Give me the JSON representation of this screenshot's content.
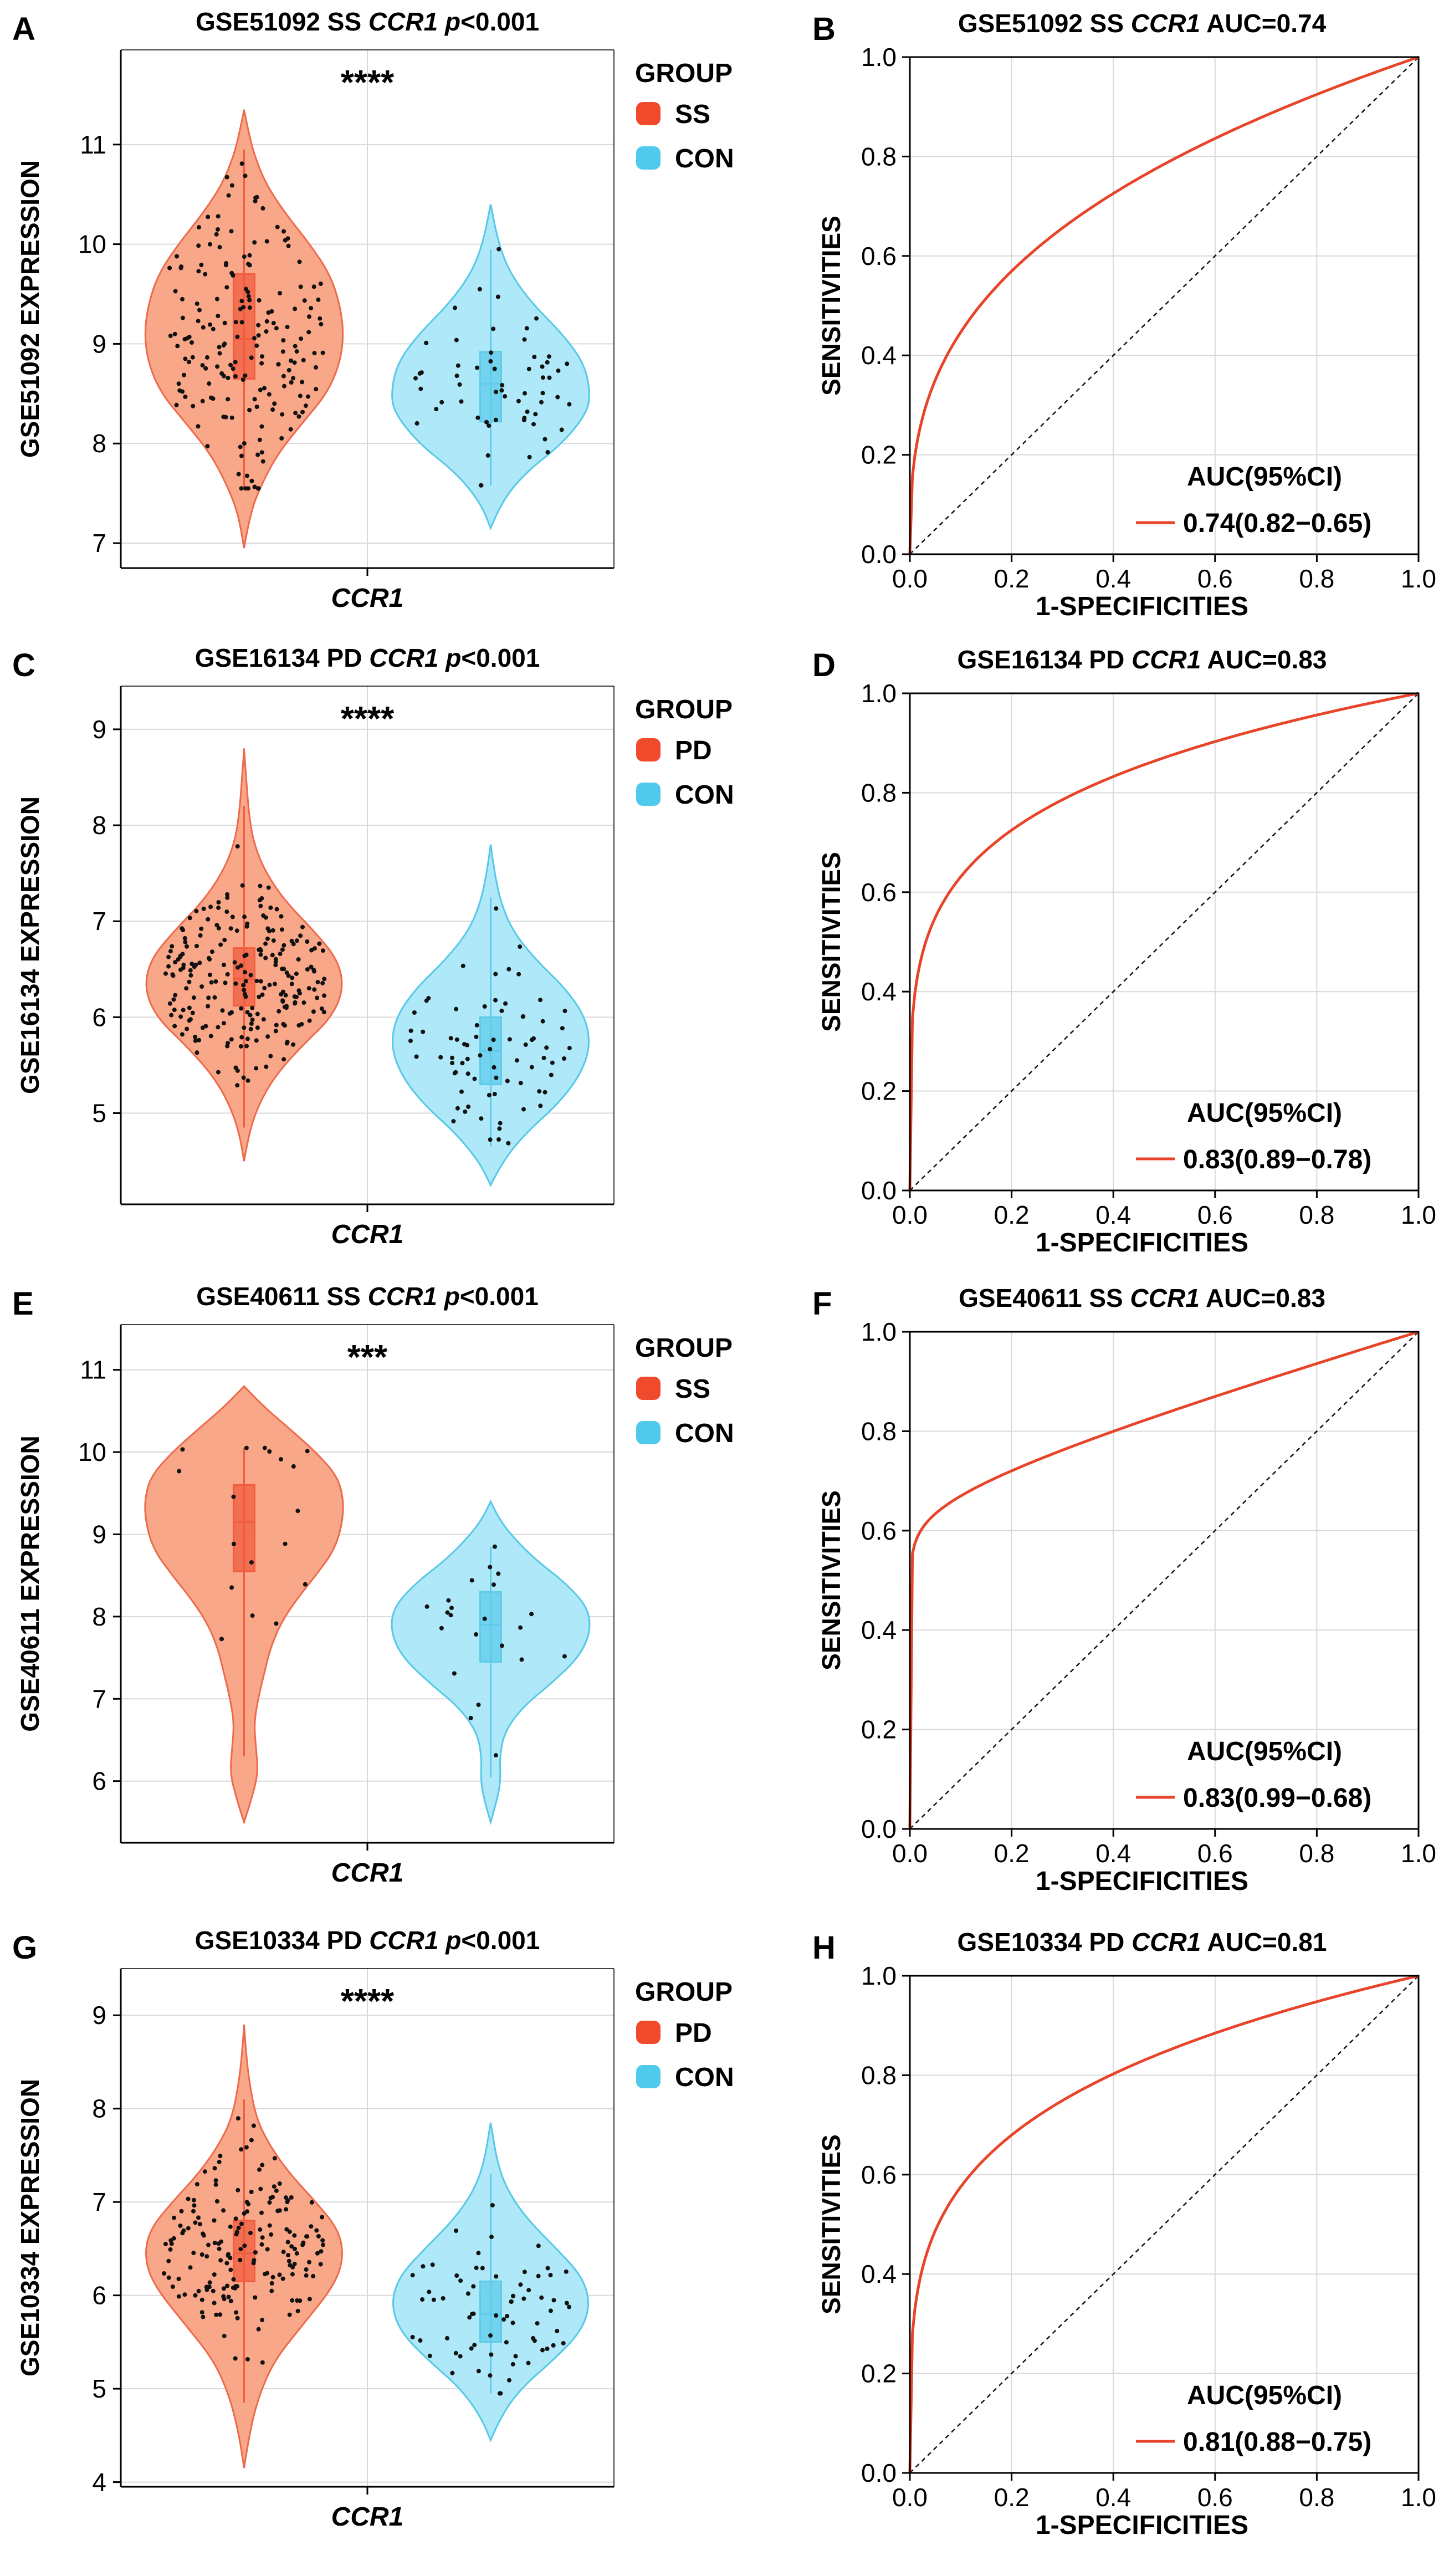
{
  "figure": {
    "colors": {
      "case_fill": "#F7A07E",
      "case_stroke": "#EC6A4B",
      "con_fill": "#A8E6F7",
      "con_stroke": "#55C8E8",
      "case_box": "#F25C3F",
      "con_box": "#5FCBEA",
      "legend_case": "#F04A2C",
      "legend_con": "#4FC9EC",
      "roc_line": "#E8442A",
      "grid": "#D9D9D9",
      "axis": "#000000",
      "point": "#111111"
    },
    "violin_common": {
      "xlabel": "CCR1",
      "legend_title": "GROUP",
      "control_label": "CON"
    },
    "roc_common": {
      "xlabel": "1-SPECIFICITIES",
      "ylabel": "SENSITIVITIES",
      "legend_title": "AUC(95%CI)"
    }
  },
  "panels": [
    {
      "violin": {
        "letter": "A",
        "dataset": "GSE51092",
        "disease": "SS",
        "gene": "CCR1",
        "pvalue": "p<0.001",
        "significance": "****",
        "ylabel": "GSE51092 EXPRESSION",
        "legend_case": "SS",
        "legend_control": "CON",
        "ylim": [
          6.75,
          11.95
        ],
        "yticks": [
          7,
          8,
          9,
          10,
          11
        ],
        "case": {
          "min": 6.95,
          "max": 11.35,
          "q1": 8.65,
          "median": 9.05,
          "q3": 9.7,
          "whisk_lo": 7.55,
          "whisk_hi": 10.95,
          "n": 190,
          "shape": [
            [
              6.95,
              0.0
            ],
            [
              7.3,
              0.06
            ],
            [
              7.6,
              0.18
            ],
            [
              7.9,
              0.34
            ],
            [
              8.2,
              0.58
            ],
            [
              8.5,
              0.83
            ],
            [
              8.8,
              0.96
            ],
            [
              9.1,
              1.0
            ],
            [
              9.4,
              0.96
            ],
            [
              9.7,
              0.86
            ],
            [
              10.0,
              0.66
            ],
            [
              10.3,
              0.42
            ],
            [
              10.6,
              0.22
            ],
            [
              10.9,
              0.1
            ],
            [
              11.15,
              0.04
            ],
            [
              11.35,
              0.0
            ]
          ]
        },
        "control": {
          "min": 7.15,
          "max": 10.4,
          "q1": 8.22,
          "median": 8.6,
          "q3": 8.92,
          "whisk_lo": 7.58,
          "whisk_hi": 9.95,
          "n": 60,
          "shape": [
            [
              7.15,
              0.0
            ],
            [
              7.4,
              0.1
            ],
            [
              7.7,
              0.34
            ],
            [
              8.0,
              0.72
            ],
            [
              8.3,
              0.96
            ],
            [
              8.5,
              1.0
            ],
            [
              8.8,
              0.94
            ],
            [
              9.1,
              0.72
            ],
            [
              9.4,
              0.42
            ],
            [
              9.7,
              0.2
            ],
            [
              10.0,
              0.08
            ],
            [
              10.4,
              0.0
            ]
          ]
        }
      },
      "roc": {
        "letter": "B",
        "dataset": "GSE51092",
        "disease": "SS",
        "gene": "CCR1",
        "auc_text": "AUC=0.74",
        "auc_ci": "0.74(0.82−0.65)",
        "curve_power": 0.35,
        "xlim": [
          0,
          1
        ],
        "ylim": [
          0,
          1
        ],
        "xticks": [
          0.0,
          0.2,
          0.4,
          0.6,
          0.8,
          1.0
        ],
        "yticks": [
          0.0,
          0.2,
          0.4,
          0.6,
          0.8,
          1.0
        ]
      }
    },
    {
      "violin": {
        "letter": "C",
        "dataset": "GSE16134",
        "disease": "PD",
        "gene": "CCR1",
        "pvalue": "p<0.001",
        "significance": "****",
        "ylabel": "GSE16134 EXPRESSION",
        "legend_case": "PD",
        "legend_control": "CON",
        "ylim": [
          4.05,
          9.45
        ],
        "yticks": [
          5,
          6,
          7,
          8,
          9
        ],
        "case": {
          "min": 4.5,
          "max": 8.8,
          "q1": 6.12,
          "median": 6.4,
          "q3": 6.72,
          "whisk_lo": 4.85,
          "whisk_hi": 8.2,
          "n": 230,
          "shape": [
            [
              4.5,
              0.0
            ],
            [
              4.8,
              0.05
            ],
            [
              5.1,
              0.15
            ],
            [
              5.4,
              0.32
            ],
            [
              5.7,
              0.58
            ],
            [
              6.0,
              0.88
            ],
            [
              6.3,
              1.0
            ],
            [
              6.6,
              0.94
            ],
            [
              6.9,
              0.7
            ],
            [
              7.2,
              0.42
            ],
            [
              7.5,
              0.22
            ],
            [
              7.8,
              0.1
            ],
            [
              8.1,
              0.05
            ],
            [
              8.5,
              0.02
            ],
            [
              8.8,
              0.0
            ]
          ]
        },
        "control": {
          "min": 4.25,
          "max": 7.8,
          "q1": 5.3,
          "median": 5.65,
          "q3": 6.0,
          "whisk_lo": 4.65,
          "whisk_hi": 7.25,
          "n": 75,
          "shape": [
            [
              4.25,
              0.0
            ],
            [
              4.5,
              0.12
            ],
            [
              4.8,
              0.36
            ],
            [
              5.1,
              0.68
            ],
            [
              5.4,
              0.9
            ],
            [
              5.7,
              1.0
            ],
            [
              6.0,
              0.95
            ],
            [
              6.3,
              0.75
            ],
            [
              6.6,
              0.45
            ],
            [
              6.9,
              0.22
            ],
            [
              7.2,
              0.1
            ],
            [
              7.5,
              0.04
            ],
            [
              7.8,
              0.0
            ]
          ]
        }
      },
      "roc": {
        "letter": "D",
        "dataset": "GSE16134",
        "disease": "PD",
        "gene": "CCR1",
        "auc_text": "AUC=0.83",
        "auc_ci": "0.83(0.89−0.78)",
        "curve_power": 0.2,
        "xlim": [
          0,
          1
        ],
        "ylim": [
          0,
          1
        ],
        "xticks": [
          0.0,
          0.2,
          0.4,
          0.6,
          0.8,
          1.0
        ],
        "yticks": [
          0.0,
          0.2,
          0.4,
          0.6,
          0.8,
          1.0
        ]
      }
    },
    {
      "violin": {
        "letter": "E",
        "dataset": "GSE40611",
        "disease": "SS",
        "gene": "CCR1",
        "pvalue": "p<0.001",
        "significance": "***",
        "ylabel": "GSE40611 EXPRESSION",
        "legend_case": "SS",
        "legend_control": "CON",
        "ylim": [
          5.25,
          11.55
        ],
        "yticks": [
          6,
          7,
          8,
          9,
          10,
          11
        ],
        "case": {
          "min": 5.5,
          "max": 10.8,
          "q1": 8.55,
          "median": 9.15,
          "q3": 9.6,
          "whisk_lo": 6.3,
          "whisk_hi": 10.05,
          "n": 18,
          "shape": [
            [
              5.5,
              0.0
            ],
            [
              5.8,
              0.08
            ],
            [
              6.1,
              0.14
            ],
            [
              6.4,
              0.12
            ],
            [
              6.7,
              0.1
            ],
            [
              7.0,
              0.14
            ],
            [
              7.3,
              0.2
            ],
            [
              7.6,
              0.26
            ],
            [
              7.9,
              0.36
            ],
            [
              8.2,
              0.52
            ],
            [
              8.5,
              0.72
            ],
            [
              8.8,
              0.9
            ],
            [
              9.1,
              0.98
            ],
            [
              9.4,
              1.0
            ],
            [
              9.7,
              0.94
            ],
            [
              10.0,
              0.72
            ],
            [
              10.3,
              0.44
            ],
            [
              10.55,
              0.2
            ],
            [
              10.8,
              0.0
            ]
          ]
        },
        "control": {
          "min": 5.5,
          "max": 9.4,
          "q1": 7.45,
          "median": 7.9,
          "q3": 8.3,
          "whisk_lo": 6.05,
          "whisk_hi": 8.85,
          "n": 22,
          "shape": [
            [
              5.5,
              0.0
            ],
            [
              5.75,
              0.06
            ],
            [
              6.0,
              0.1
            ],
            [
              6.3,
              0.09
            ],
            [
              6.6,
              0.14
            ],
            [
              6.9,
              0.32
            ],
            [
              7.2,
              0.62
            ],
            [
              7.5,
              0.88
            ],
            [
              7.8,
              1.0
            ],
            [
              8.1,
              0.98
            ],
            [
              8.4,
              0.76
            ],
            [
              8.7,
              0.44
            ],
            [
              9.0,
              0.2
            ],
            [
              9.2,
              0.08
            ],
            [
              9.4,
              0.0
            ]
          ]
        }
      },
      "roc": {
        "letter": "F",
        "dataset": "GSE40611",
        "disease": "SS",
        "gene": "CCR1",
        "auc_text": "AUC=0.83",
        "auc_ci": "0.83(0.99−0.68)",
        "curve_type": "shoulder",
        "xlim": [
          0,
          1
        ],
        "ylim": [
          0,
          1
        ],
        "xticks": [
          0.0,
          0.2,
          0.4,
          0.6,
          0.8,
          1.0
        ],
        "yticks": [
          0.0,
          0.2,
          0.4,
          0.6,
          0.8,
          1.0
        ]
      }
    },
    {
      "violin": {
        "letter": "G",
        "dataset": "GSE10334",
        "disease": "PD",
        "gene": "CCR1",
        "pvalue": "p<0.001",
        "significance": "****",
        "ylabel": "GSE10334 EXPRESSION",
        "legend_case": "PD",
        "legend_control": "CON",
        "ylim": [
          3.95,
          9.5
        ],
        "yticks": [
          4,
          5,
          6,
          7,
          8,
          9
        ],
        "case": {
          "min": 4.15,
          "max": 8.9,
          "q1": 6.15,
          "median": 6.45,
          "q3": 6.8,
          "whisk_lo": 4.85,
          "whisk_hi": 8.1,
          "n": 180,
          "shape": [
            [
              4.15,
              0.0
            ],
            [
              4.5,
              0.05
            ],
            [
              4.9,
              0.14
            ],
            [
              5.3,
              0.3
            ],
            [
              5.7,
              0.6
            ],
            [
              6.1,
              0.9
            ],
            [
              6.4,
              1.0
            ],
            [
              6.7,
              0.95
            ],
            [
              7.0,
              0.72
            ],
            [
              7.3,
              0.46
            ],
            [
              7.6,
              0.26
            ],
            [
              7.9,
              0.12
            ],
            [
              8.3,
              0.05
            ],
            [
              8.6,
              0.02
            ],
            [
              8.9,
              0.0
            ]
          ]
        },
        "control": {
          "min": 4.45,
          "max": 7.85,
          "q1": 5.5,
          "median": 5.8,
          "q3": 6.15,
          "whisk_lo": 4.95,
          "whisk_hi": 7.3,
          "n": 70,
          "shape": [
            [
              4.45,
              0.0
            ],
            [
              4.7,
              0.1
            ],
            [
              5.0,
              0.3
            ],
            [
              5.3,
              0.62
            ],
            [
              5.6,
              0.9
            ],
            [
              5.9,
              1.0
            ],
            [
              6.2,
              0.92
            ],
            [
              6.5,
              0.66
            ],
            [
              6.8,
              0.38
            ],
            [
              7.1,
              0.18
            ],
            [
              7.4,
              0.07
            ],
            [
              7.85,
              0.0
            ]
          ]
        }
      },
      "roc": {
        "letter": "H",
        "dataset": "GSE10334",
        "disease": "PD",
        "gene": "CCR1",
        "auc_text": "AUC=0.81",
        "auc_ci": "0.81(0.88−0.75)",
        "curve_power": 0.24,
        "xlim": [
          0,
          1
        ],
        "ylim": [
          0,
          1
        ],
        "xticks": [
          0.0,
          0.2,
          0.4,
          0.6,
          0.8,
          1.0
        ],
        "yticks": [
          0.0,
          0.2,
          0.4,
          0.6,
          0.8,
          1.0
        ]
      }
    }
  ]
}
